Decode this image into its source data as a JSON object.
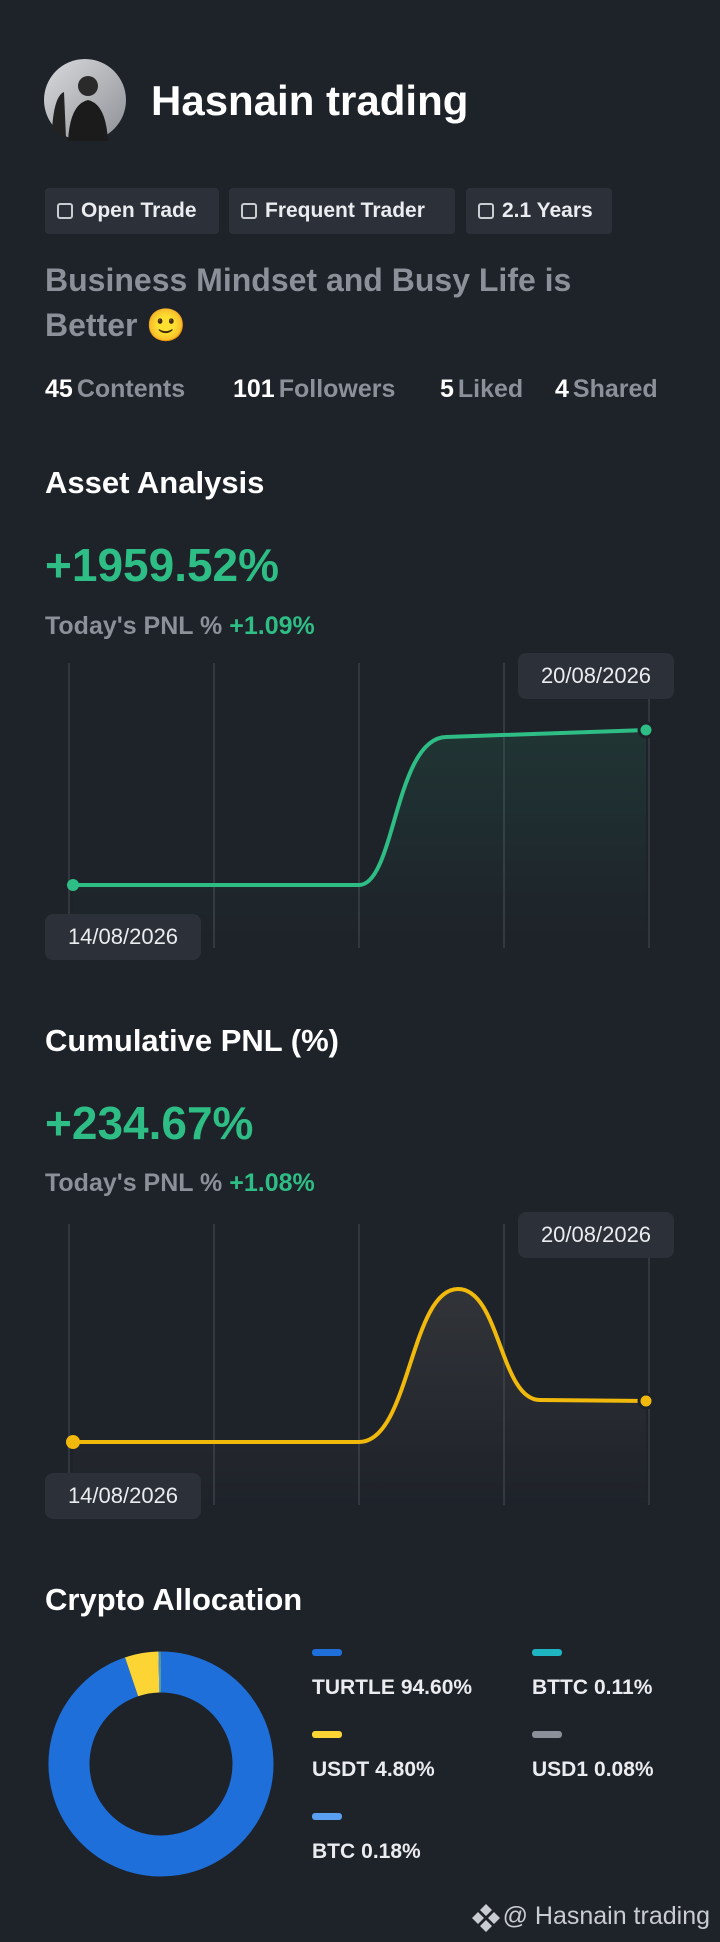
{
  "profile": {
    "name": "Hasnain trading",
    "tags": [
      "Open Trade",
      "Frequent Trader",
      "2.1 Years"
    ],
    "bio": "Business Mindset and Busy Life is Better 🙂",
    "stats": [
      {
        "value": 45,
        "label": "Contents"
      },
      {
        "value": 101,
        "label": "Followers"
      },
      {
        "value": 5,
        "label": "Liked"
      },
      {
        "value": 4,
        "label": "Shared"
      }
    ]
  },
  "asset_analysis": {
    "title": "Asset Analysis",
    "value": "+1959.52%",
    "pnl_label": "Today's PNL %",
    "pnl_value": "+1.09%",
    "start_date": "14/08/2026",
    "end_date": "20/08/2026"
  },
  "cumulative_pnl": {
    "title": "Cumulative PNL (%)",
    "value": "+234.67%",
    "pnl_label": "Today's PNL %",
    "pnl_value": "+1.08%",
    "start_date": "14/08/2026",
    "end_date": "20/08/2026"
  },
  "allocation": {
    "title": "Crypto Allocation",
    "items": [
      {
        "name": "TURTLE",
        "value": 94.6,
        "label": "94.60%",
        "color": "#1e6fd9"
      },
      {
        "name": "USDT",
        "value": 4.8,
        "label": "4.80%",
        "color": "#fcd535"
      },
      {
        "name": "BTC",
        "value": 0.18,
        "label": "0.18%",
        "color": "#5aa0f0"
      },
      {
        "name": "BTTC",
        "value": 0.11,
        "label": "0.11%",
        "color": "#1fb5c0"
      },
      {
        "name": "USD1",
        "value": 0.08,
        "label": "0.08%",
        "color": "#8a8f99"
      }
    ]
  },
  "footer": "@ Hasnain trading"
}
